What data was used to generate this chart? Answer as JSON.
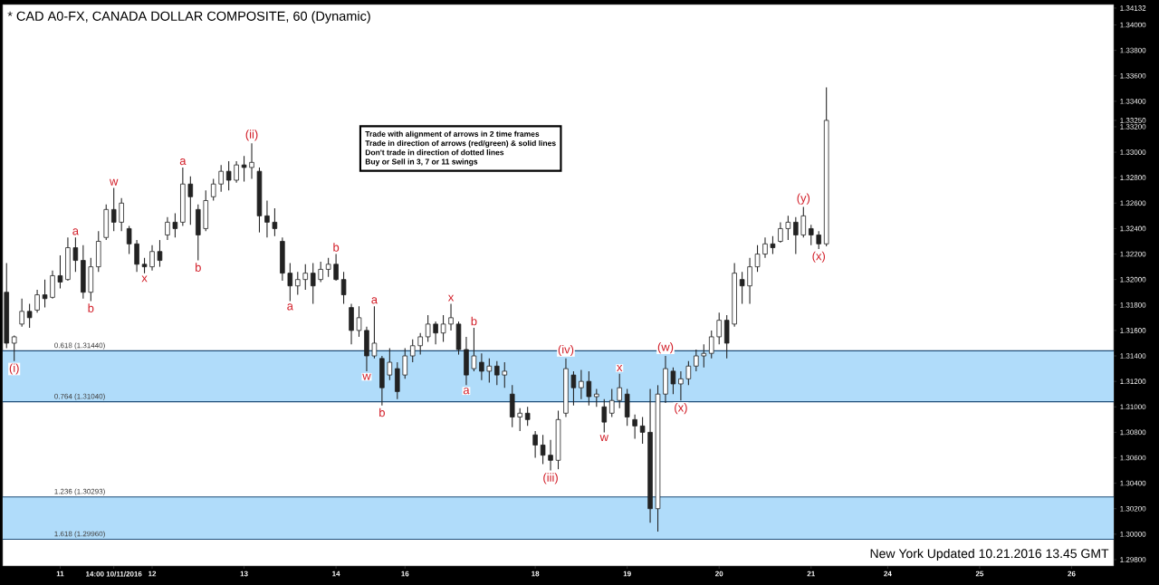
{
  "chart_data": {
    "type": "candlestick",
    "title": "* CAD A0-FX, CANADA DOLLAR COMPOSITE, 60 (Dynamic)",
    "color": "#222222",
    "categories": [
      null,
      null,
      null,
      null,
      null,
      null,
      null,
      "11",
      null,
      null,
      null,
      null,
      null,
      null,
      "14:00 10/11/2016",
      null,
      null,
      null,
      null,
      "12",
      null,
      null,
      null,
      null,
      null,
      null,
      null,
      null,
      null,
      null,
      null,
      "13",
      null,
      null,
      null,
      null,
      null,
      null,
      null,
      null,
      null,
      null,
      null,
      "14",
      null,
      null,
      null,
      null,
      null,
      null,
      null,
      null,
      "16",
      null,
      null,
      null,
      null,
      null,
      null,
      null,
      null,
      null,
      null,
      null,
      null,
      null,
      null,
      null,
      null,
      "18",
      null,
      null,
      null,
      null,
      null,
      null,
      null,
      null,
      null,
      null,
      null,
      "19",
      null,
      null,
      null,
      null,
      null,
      null,
      null,
      null,
      null,
      null,
      null,
      "20",
      null,
      null,
      null,
      null,
      null,
      null,
      null,
      null,
      null,
      null,
      null,
      "21",
      null,
      null,
      null,
      null,
      null,
      null,
      null,
      null,
      null,
      "24",
      null,
      null,
      null,
      null,
      null,
      null,
      null,
      null,
      null,
      null,
      null,
      "25",
      null,
      null,
      null,
      null,
      null,
      null,
      null,
      null,
      null,
      null,
      null,
      "26",
      null,
      null,
      null,
      null,
      null
    ],
    "ohlc": [
      [
        1.319,
        1.3213,
        1.3146,
        1.315
      ],
      [
        1.315,
        1.3156,
        1.3136,
        1.3155
      ],
      [
        1.3165,
        1.3185,
        1.3163,
        1.3175
      ],
      [
        1.3175,
        1.3181,
        1.3162,
        1.317
      ],
      [
        1.3176,
        1.3192,
        1.3174,
        1.3188
      ],
      [
        1.3188,
        1.32,
        1.3178,
        1.3185
      ],
      [
        1.3186,
        1.3207,
        1.3185,
        1.3203
      ],
      [
        1.3203,
        1.3219,
        1.3193,
        1.3198
      ],
      [
        1.32,
        1.3233,
        1.3199,
        1.3225
      ],
      [
        1.3225,
        1.3233,
        1.3206,
        1.3215
      ],
      [
        1.3215,
        1.3227,
        1.3185,
        1.319
      ],
      [
        1.319,
        1.3217,
        1.3183,
        1.321
      ],
      [
        1.321,
        1.3238,
        1.3206,
        1.323
      ],
      [
        1.3233,
        1.3259,
        1.3231,
        1.3255
      ],
      [
        1.3255,
        1.3272,
        1.3238,
        1.3245
      ],
      [
        1.3245,
        1.3264,
        1.3238,
        1.326
      ],
      [
        1.324,
        1.3242,
        1.322,
        1.3228
      ],
      [
        1.3228,
        1.3231,
        1.3206,
        1.3212
      ],
      [
        1.3212,
        1.3217,
        1.3205,
        1.321
      ],
      [
        1.321,
        1.3227,
        1.3207,
        1.3222
      ],
      [
        1.3222,
        1.3231,
        1.321,
        1.3215
      ],
      [
        1.3235,
        1.3249,
        1.3231,
        1.3245
      ],
      [
        1.3245,
        1.3252,
        1.3233,
        1.324
      ],
      [
        1.3245,
        1.3288,
        1.3242,
        1.3275
      ],
      [
        1.3275,
        1.3281,
        1.3243,
        1.3265
      ],
      [
        1.3255,
        1.3259,
        1.3215,
        1.3235
      ],
      [
        1.324,
        1.327,
        1.3238,
        1.3262
      ],
      [
        1.3265,
        1.3279,
        1.3262,
        1.3275
      ],
      [
        1.3275,
        1.329,
        1.3269,
        1.3285
      ],
      [
        1.3285,
        1.3293,
        1.327,
        1.3278
      ],
      [
        1.3278,
        1.3293,
        1.3276,
        1.329
      ],
      [
        1.329,
        1.3297,
        1.3277,
        1.3288
      ],
      [
        1.3288,
        1.3307,
        1.3279,
        1.3292
      ],
      [
        1.3285,
        1.3288,
        1.3237,
        1.325
      ],
      [
        1.325,
        1.3262,
        1.3233,
        1.3245
      ],
      [
        1.3245,
        1.3256,
        1.3234,
        1.324
      ],
      [
        1.323,
        1.3233,
        1.3199,
        1.3205
      ],
      [
        1.3205,
        1.3213,
        1.3183,
        1.3195
      ],
      [
        1.3195,
        1.3206,
        1.3188,
        1.32
      ],
      [
        1.32,
        1.3212,
        1.3192,
        1.3205
      ],
      [
        1.3205,
        1.3213,
        1.3181,
        1.3195
      ],
      [
        1.32,
        1.3214,
        1.3198,
        1.3208
      ],
      [
        1.3208,
        1.3217,
        1.3202,
        1.3212
      ],
      [
        1.3212,
        1.322,
        1.3199,
        1.32
      ],
      [
        1.32,
        1.3206,
        1.3181,
        1.3188
      ],
      [
        1.3178,
        1.3181,
        1.3149,
        1.316
      ],
      [
        1.316,
        1.3179,
        1.3155,
        1.317
      ],
      [
        1.316,
        1.3163,
        1.3128,
        1.314
      ],
      [
        1.314,
        1.3179,
        1.3138,
        1.315
      ],
      [
        1.3138,
        1.314,
        1.3101,
        1.3115
      ],
      [
        1.3125,
        1.3146,
        1.3121,
        1.3135
      ],
      [
        1.313,
        1.3135,
        1.3106,
        1.3112
      ],
      [
        1.3125,
        1.3146,
        1.3122,
        1.314
      ],
      [
        1.314,
        1.3153,
        1.3135,
        1.3148
      ],
      [
        1.3148,
        1.3158,
        1.3141,
        1.3155
      ],
      [
        1.3155,
        1.3172,
        1.3151,
        1.3165
      ],
      [
        1.3165,
        1.3167,
        1.3149,
        1.3158
      ],
      [
        1.3158,
        1.3172,
        1.3151,
        1.3165
      ],
      [
        1.3165,
        1.3181,
        1.316,
        1.317
      ],
      [
        1.3165,
        1.3167,
        1.3141,
        1.3145
      ],
      [
        1.3145,
        1.3155,
        1.3117,
        1.3125
      ],
      [
        1.313,
        1.3162,
        1.3128,
        1.314
      ],
      [
        1.3135,
        1.3142,
        1.3121,
        1.3128
      ],
      [
        1.3128,
        1.3138,
        1.3119,
        1.3132
      ],
      [
        1.3132,
        1.3136,
        1.3117,
        1.3125
      ],
      [
        1.3125,
        1.3135,
        1.3115,
        1.3128
      ],
      [
        1.311,
        1.3117,
        1.3084,
        1.3092
      ],
      [
        1.3092,
        1.3099,
        1.3081,
        1.3095
      ],
      [
        1.3095,
        1.31,
        1.3085,
        1.309
      ],
      [
        1.3078,
        1.3081,
        1.306,
        1.307
      ],
      [
        1.307,
        1.3078,
        1.3055,
        1.3062
      ],
      [
        1.3062,
        1.3074,
        1.305,
        1.3058
      ],
      [
        1.3058,
        1.3097,
        1.3051,
        1.309
      ],
      [
        1.3095,
        1.3138,
        1.3092,
        1.313
      ],
      [
        1.3125,
        1.3128,
        1.3101,
        1.3115
      ],
      [
        1.3115,
        1.3129,
        1.3106,
        1.312
      ],
      [
        1.312,
        1.3128,
        1.3101,
        1.3108
      ],
      [
        1.3108,
        1.3114,
        1.31,
        1.311
      ],
      [
        1.31,
        1.3106,
        1.308,
        1.3088
      ],
      [
        1.3095,
        1.3114,
        1.3092,
        1.3105
      ],
      [
        1.3105,
        1.3126,
        1.3099,
        1.3115
      ],
      [
        1.311,
        1.3114,
        1.3085,
        1.3092
      ],
      [
        1.309,
        1.3094,
        1.3075,
        1.3085
      ],
      [
        1.3085,
        1.3092,
        1.3071,
        1.308
      ],
      [
        1.308,
        1.3114,
        1.3009,
        1.302
      ],
      [
        1.302,
        1.3117,
        1.3002,
        1.311
      ],
      [
        1.311,
        1.314,
        1.3103,
        1.313
      ],
      [
        1.3128,
        1.3131,
        1.311,
        1.3118
      ],
      [
        1.3118,
        1.3128,
        1.3105,
        1.3122
      ],
      [
        1.3122,
        1.3136,
        1.3117,
        1.3132
      ],
      [
        1.3132,
        1.3145,
        1.3128,
        1.314
      ],
      [
        1.314,
        1.3149,
        1.3131,
        1.3142
      ],
      [
        1.3142,
        1.316,
        1.3138,
        1.3155
      ],
      [
        1.3155,
        1.3174,
        1.3149,
        1.3168
      ],
      [
        1.3168,
        1.3172,
        1.3138,
        1.315
      ],
      [
        1.3165,
        1.3213,
        1.3163,
        1.3205
      ],
      [
        1.32,
        1.3206,
        1.3181,
        1.3195
      ],
      [
        1.3195,
        1.3217,
        1.3181,
        1.321
      ],
      [
        1.321,
        1.3227,
        1.3206,
        1.322
      ],
      [
        1.322,
        1.3233,
        1.3217,
        1.3228
      ],
      [
        1.3228,
        1.3234,
        1.322,
        1.3225
      ],
      [
        1.323,
        1.3245,
        1.3229,
        1.324
      ],
      [
        1.324,
        1.325,
        1.3231,
        1.3245
      ],
      [
        1.3245,
        1.3249,
        1.322,
        1.3235
      ],
      [
        1.3235,
        1.3257,
        1.3233,
        1.325
      ],
      [
        1.324,
        1.3243,
        1.3227,
        1.3235
      ],
      [
        1.3235,
        1.3238,
        1.3224,
        1.3228
      ],
      [
        1.3228,
        1.3351,
        1.3226,
        1.3325
      ],
      null,
      null,
      null,
      null,
      null,
      null,
      null,
      null,
      null,
      null,
      null,
      null,
      null,
      null,
      null,
      null,
      null,
      null,
      null,
      null,
      null,
      null,
      null,
      null,
      null,
      null,
      null,
      null,
      null,
      null,
      null,
      null,
      null,
      null,
      null,
      null,
      null
    ],
    "value_labels": [
      null,
      "(i)",
      null,
      null,
      null,
      null,
      null,
      null,
      null,
      "a",
      null,
      "b",
      null,
      null,
      "w",
      null,
      null,
      null,
      "x",
      null,
      null,
      null,
      null,
      "a",
      null,
      "b",
      null,
      null,
      null,
      null,
      null,
      null,
      "(ii)",
      null,
      null,
      null,
      null,
      "a",
      null,
      null,
      null,
      null,
      null,
      "b",
      null,
      null,
      null,
      "w",
      "a",
      "b",
      null,
      null,
      null,
      null,
      null,
      null,
      null,
      null,
      "x",
      null,
      "a",
      "b",
      null,
      null,
      null,
      null,
      null,
      null,
      null,
      null,
      null,
      "(iii)",
      null,
      "(iv)",
      null,
      null,
      null,
      null,
      "w",
      null,
      "x",
      null,
      null,
      null,
      null,
      null,
      "(w)",
      null,
      "(x)",
      null,
      null,
      null,
      null,
      null,
      null,
      null,
      null,
      null,
      null,
      null,
      null,
      null,
      null,
      null,
      "(y)",
      null,
      "(x)",
      null,
      null,
      null,
      null,
      null,
      null,
      null,
      null,
      null,
      null,
      null,
      null,
      null,
      null,
      null,
      null,
      null,
      null,
      null,
      null,
      null,
      null,
      null,
      null,
      null,
      null,
      null,
      null,
      null,
      null,
      null,
      null,
      null,
      null,
      null,
      null,
      null,
      null
    ],
    "ylim": [
      1.2975,
      1.3416
    ],
    "yticks": [
      {
        "value": 1.298,
        "label": "1.29800"
      },
      {
        "value": 1.3,
        "label": "1.30000"
      },
      {
        "value": 1.302,
        "label": "1.30200"
      },
      {
        "value": 1.304,
        "label": "1.30400"
      },
      {
        "value": 1.306,
        "label": "1.30600"
      },
      {
        "value": 1.308,
        "label": "1.30800"
      },
      {
        "value": 1.31,
        "label": "1.31000"
      },
      {
        "value": 1.312,
        "label": "1.31200"
      },
      {
        "value": 1.314,
        "label": "1.31400"
      },
      {
        "value": 1.316,
        "label": "1.31600"
      },
      {
        "value": 1.318,
        "label": "1.31800"
      },
      {
        "value": 1.32,
        "label": "1.32000"
      },
      {
        "value": 1.322,
        "label": "1.32200"
      },
      {
        "value": 1.324,
        "label": "1.32400"
      },
      {
        "value": 1.326,
        "label": "1.32600"
      },
      {
        "value": 1.328,
        "label": "1.32800"
      },
      {
        "value": 1.33,
        "label": "1.33000"
      },
      {
        "value": 1.332,
        "label": "1.33200"
      },
      {
        "value": 1.3325,
        "label": "1.33250"
      },
      {
        "value": 1.334,
        "label": "1.33400"
      },
      {
        "value": 1.336,
        "label": "1.33600"
      },
      {
        "value": 1.338,
        "label": "1.33800"
      },
      {
        "value": 1.34,
        "label": "1.34000"
      },
      {
        "value": 1.34132,
        "label": "1.34132"
      }
    ],
    "bands": [
      {
        "axis": "y",
        "from": 1.3104,
        "to": 1.3144,
        "color": "#b0dcfa"
      },
      {
        "axis": "y",
        "from": 1.2996,
        "to": 1.30293,
        "color": "#b0dcfa"
      }
    ],
    "ref_lines": [
      {
        "axis": "y",
        "value": 1.3144,
        "label": "0.618 (1.31440)",
        "color": "#1f4e79"
      },
      {
        "axis": "y",
        "value": 1.3104,
        "label": "0.764 (1.31040)",
        "color": "#1f4e79"
      },
      {
        "axis": "y",
        "value": 1.30293,
        "label": "1.236 (1.30293)",
        "color": "#1f4e79"
      },
      {
        "axis": "y",
        "value": 1.2996,
        "label": "1.618 (1.29960)",
        "color": "#1f4e79"
      }
    ],
    "annotations": [
      "Trade with alignment of arrows in 2 time frames",
      "Trade in direction of arrows (red/green) & solid lines",
      "Don't trade in direction of dotted lines",
      "Buy or Sell in 3, 7 or 11 swings",
      "New York Updated 10.21.2016 13.45 GMT"
    ]
  }
}
